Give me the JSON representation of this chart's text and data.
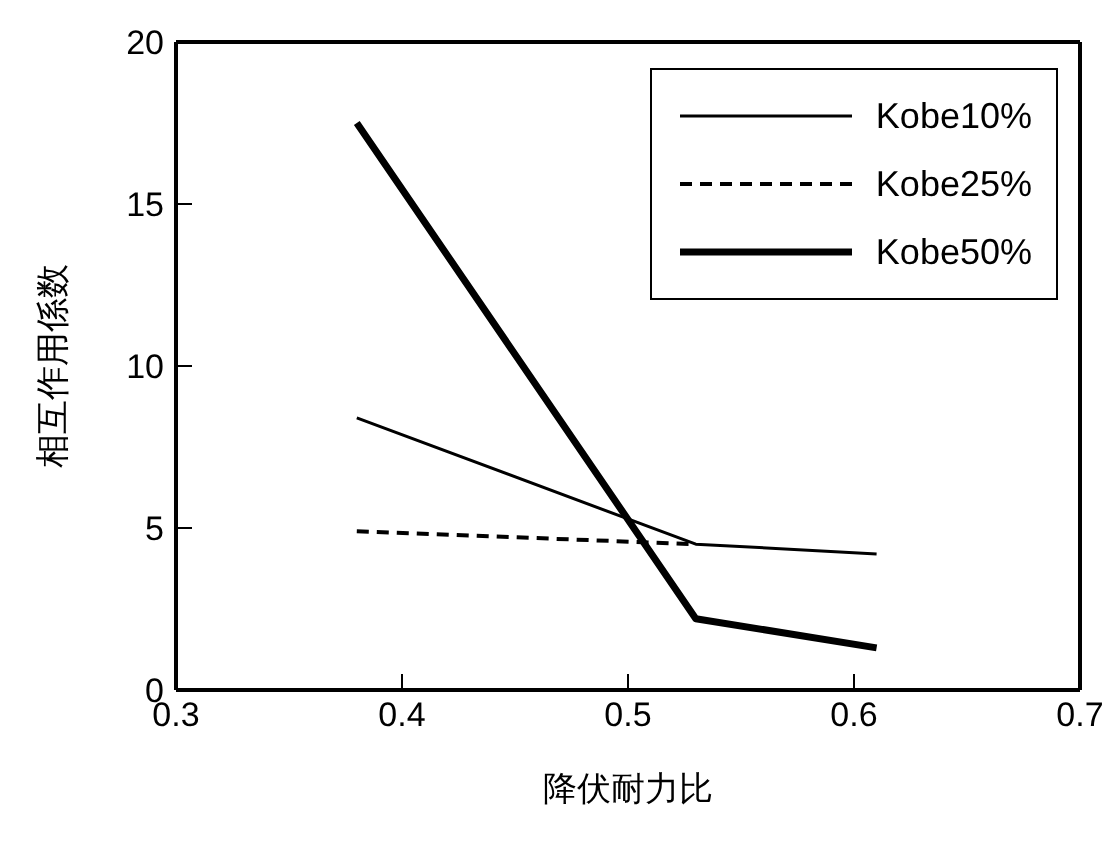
{
  "chart_data": {
    "type": "line",
    "xlabel": "降伏耐力比",
    "ylabel": "相互作用係数",
    "xlim": [
      0.3,
      0.7
    ],
    "xticks": [
      0.3,
      0.4,
      0.5,
      0.6,
      0.7
    ],
    "ylim": [
      0,
      20
    ],
    "yticks": [
      0,
      5,
      10,
      15,
      20
    ],
    "legend": "top right",
    "grid": false,
    "marker": "none",
    "x": [
      0.38,
      0.53,
      0.61
    ],
    "series": [
      {
        "name": "Kobe10%",
        "color": "#000000",
        "values": [
          8.4,
          4.5,
          4.2
        ],
        "line_style": "solid"
      },
      {
        "name": "Kobe25%",
        "color": "#000000",
        "values": [
          4.9,
          4.5,
          null
        ],
        "line_style": "dashed"
      },
      {
        "name": "Kobe50%",
        "color": "#000000",
        "values": [
          17.5,
          2.2,
          1.3
        ],
        "line_style": "solid"
      }
    ]
  }
}
